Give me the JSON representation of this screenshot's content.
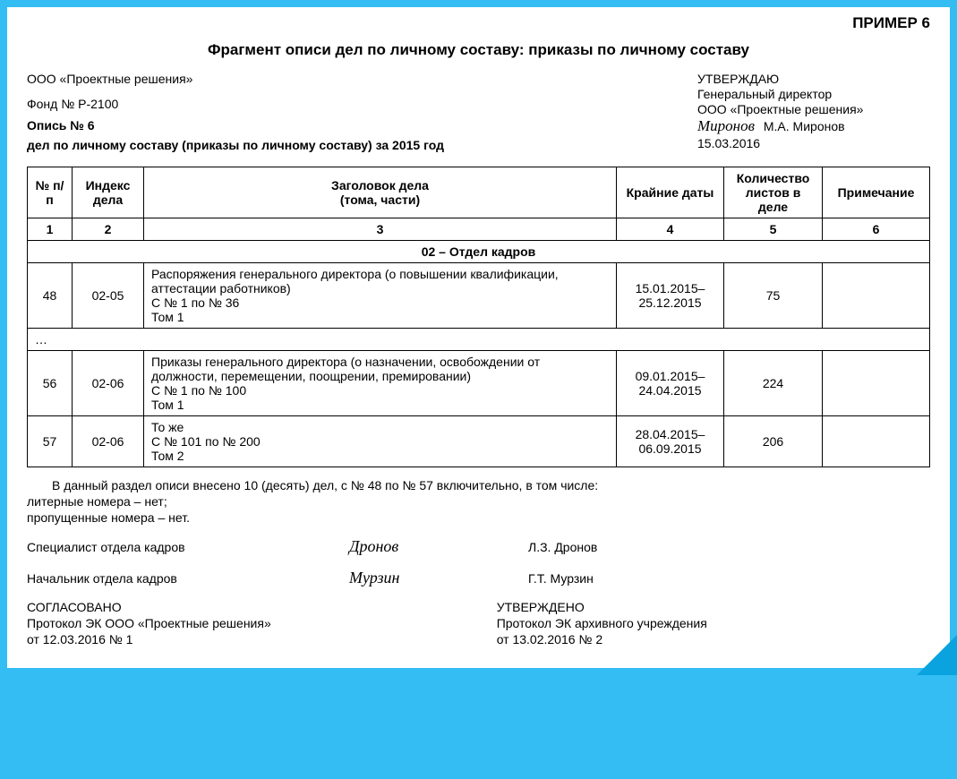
{
  "colors": {
    "page_bg": "#33bdf2",
    "doc_bg": "#ffffff",
    "text": "#000000",
    "corner": "#0aa3e0"
  },
  "example_label": "ПРИМЕР 6",
  "title": "Фрагмент описи дел по личному составу: приказы по личному составу",
  "org": "ООО «Проектные решения»",
  "fund": "Фонд № Р-2100",
  "approve": {
    "word": "УТВЕРЖДАЮ",
    "position": "Генеральный директор",
    "org": "ООО «Проектные решения»",
    "signature": "Миронов",
    "name": "М.А. Миронов",
    "date": "15.03.2016"
  },
  "opis_no": "Опись № 6",
  "opis_sub": "дел по личному составу (приказы по личному составу) за 2015 год",
  "table": {
    "headers": [
      "№ п/п",
      "Индекс дела",
      "Заголовок дела\n(тома, части)",
      "Крайние даты",
      "Количество листов в деле",
      "Примечание"
    ],
    "col_numbers": [
      "1",
      "2",
      "3",
      "4",
      "5",
      "6"
    ],
    "section": "02 – Отдел кадров",
    "rows": [
      {
        "num": "48",
        "index": "02-05",
        "title": "Распоряжения генерального директора (о повышении квалификации, аттестации работников)\nС № 1 по № 36\nТом 1",
        "dates": "15.01.2015–\n25.12.2015",
        "sheets": "75",
        "note": ""
      },
      {
        "ellipsis": "…"
      },
      {
        "num": "56",
        "index": "02-06",
        "title": "Приказы генерального директора (о назначении, освобождении от должности, перемещении, поощрении, премировании)\nС № 1 по № 100\nТом 1",
        "dates": "09.01.2015–\n24.04.2015",
        "sheets": "224",
        "note": ""
      },
      {
        "num": "57",
        "index": "02-06",
        "title": "То же\nС № 101 по № 200\nТом 2",
        "dates": "28.04.2015–\n06.09.2015",
        "sheets": "206",
        "note": ""
      }
    ]
  },
  "summary": {
    "line1": "В данный раздел описи внесено 10 (десять) дел, с № 48 по № 57 включительно, в том числе:",
    "line2": "литерные номера – нет;",
    "line3": "пропущенные номера – нет."
  },
  "signers": [
    {
      "role": "Специалист отдела кадров",
      "signature": "Дронов",
      "name": "Л.З. Дронов"
    },
    {
      "role": "Начальник отдела кадров",
      "signature": "Мурзин",
      "name": "Г.Т. Мурзин"
    }
  ],
  "agreed": {
    "title": "СОГЛАСОВАНО",
    "line1": "Протокол ЭК ООО «Проектные решения»",
    "line2": "от 12.03.2016 № 1"
  },
  "approved": {
    "title": "УТВЕРЖДЕНО",
    "line1": "Протокол ЭК архивного учреждения",
    "line2": "от 13.02.2016 № 2"
  }
}
